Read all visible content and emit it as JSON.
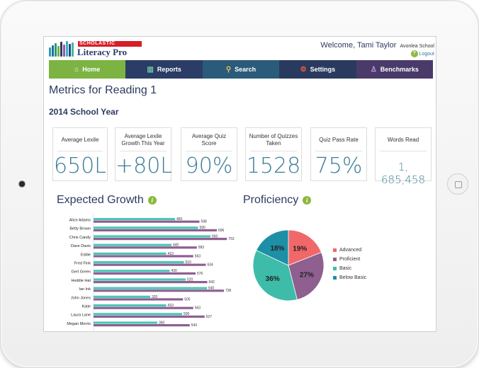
{
  "header": {
    "brand_badge": "SCHOLASTIC",
    "brand_name": "Literacy Pro",
    "welcome": "Welcome, Tami Taylor",
    "school": "Avonlea School",
    "logout": "Logout"
  },
  "nav": {
    "items": [
      {
        "label": "Home"
      },
      {
        "label": "Reports"
      },
      {
        "label": "Search"
      },
      {
        "label": "Settings"
      },
      {
        "label": "Benchmarks"
      }
    ]
  },
  "page": {
    "title": "Metrics for Reading 1",
    "year": "2014 School Year"
  },
  "metrics": [
    {
      "label": "Average Lexile",
      "value": "650L"
    },
    {
      "label": "Average Lexile Growth This Year",
      "value": "+80L"
    },
    {
      "label": "Average Quiz Score",
      "value": "90%"
    },
    {
      "label": "Number of Quizzes Taken",
      "value": "1528"
    },
    {
      "label": "Quiz Pass Rate",
      "value": "75%"
    },
    {
      "label": "Words Read",
      "value": "1, 685,458"
    }
  ],
  "expected_growth": {
    "title": "Expected Growth"
  },
  "proficiency": {
    "title": "Proficiency"
  },
  "colors": {
    "growth_current": "#4cc6b3",
    "growth_expected": "#8e5f94",
    "advanced": "#f0686a",
    "proficient": "#8e5f8f",
    "basic": "#3dbcaa",
    "below_basic": "#1d8fa6"
  },
  "chart_data": [
    {
      "type": "bar",
      "orientation": "horizontal",
      "categories": [
        "Alice Adams",
        "Betty Brown",
        "Chris Candy",
        "Dave Davis",
        "Eddie",
        "Fred Fink",
        "Gert Green",
        "Heddie Hat",
        "Ian Ink",
        "John Jones",
        "Katie",
        "Laura Lane",
        "Megan Morris"
      ],
      "series": [
        {
          "values": [
            460,
            590,
            660,
            440,
            410,
            510,
            430,
            520,
            640,
            320,
            410,
            500,
            360
          ]
        },
        {
          "values": [
            598,
            696,
            753,
            583,
            563,
            634,
            576,
            642,
            736,
            505,
            563,
            627,
            543
          ]
        }
      ],
      "xlim": [
        0,
        780
      ]
    },
    {
      "type": "pie",
      "slices": [
        {
          "label": "Advanced",
          "value": 19,
          "text": "19%"
        },
        {
          "label": "Proficient",
          "value": 27,
          "text": "27%"
        },
        {
          "label": "Basic",
          "value": 36,
          "text": "36%"
        },
        {
          "label": "Below Basic",
          "value": 18,
          "text": "18%"
        }
      ]
    }
  ]
}
